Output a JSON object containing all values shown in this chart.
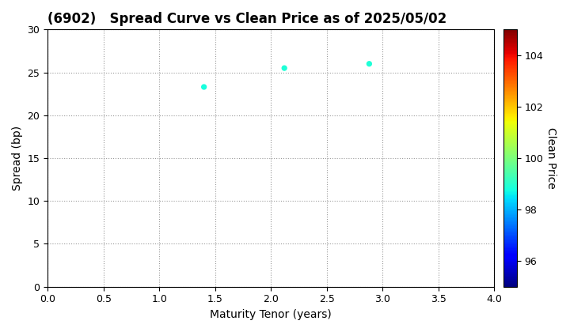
{
  "title": "(6902)   Spread Curve vs Clean Price as of 2025/05/02",
  "xlabel": "Maturity Tenor (years)",
  "ylabel": "Spread (bp)",
  "colorbar_label": "Clean Price",
  "x": [
    1.4,
    2.12,
    2.88
  ],
  "y": [
    23.3,
    25.5,
    26.0
  ],
  "clean_prices": [
    98.8,
    98.9,
    98.9
  ],
  "cmap": "jet",
  "clim_min": 95.0,
  "clim_max": 105.0,
  "xlim": [
    0.0,
    4.0
  ],
  "ylim": [
    0.0,
    30.0
  ],
  "xticks": [
    0.0,
    0.5,
    1.0,
    1.5,
    2.0,
    2.5,
    3.0,
    3.5,
    4.0
  ],
  "yticks": [
    0,
    5,
    10,
    15,
    20,
    25,
    30
  ],
  "colorbar_ticks": [
    96,
    98,
    100,
    102,
    104
  ],
  "marker_size": 18,
  "background_color": "#ffffff",
  "title_fontsize": 12,
  "label_fontsize": 10,
  "tick_fontsize": 9
}
